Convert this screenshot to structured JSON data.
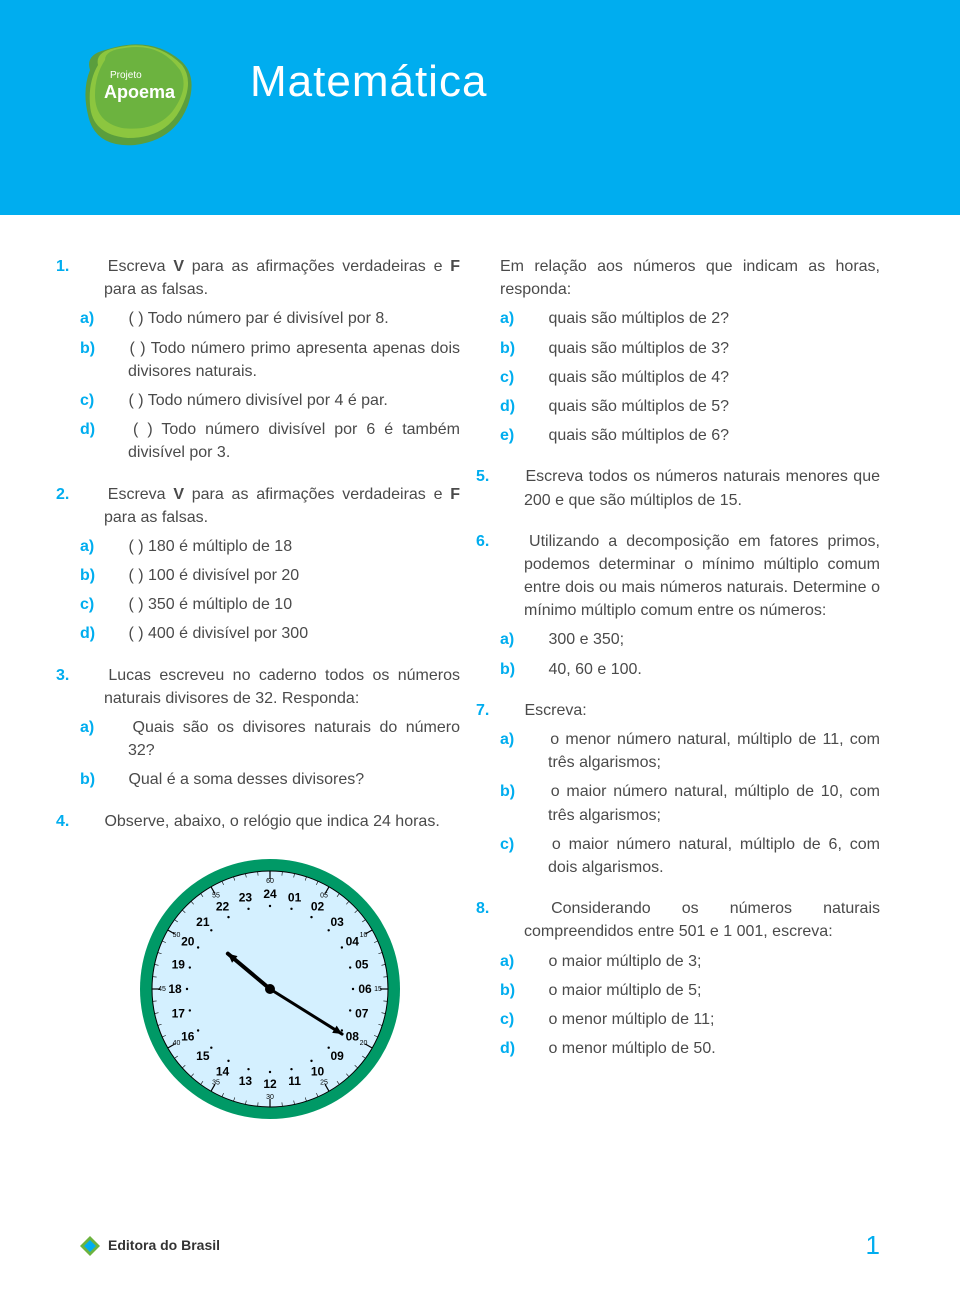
{
  "header": {
    "logo_line1": "Projeto",
    "logo_line2": "Apoema",
    "title": "Matemática",
    "bg_color": "#00adef",
    "logo_colors": [
      "#6cb33f",
      "#8cc63f",
      "#5a9e3d"
    ]
  },
  "accent_color": "#00adef",
  "text_color": "#4a4a4a",
  "left_col": {
    "q1": {
      "num": "1.",
      "text": "Escreva V para as afirmações verdadeiras e F para as falsas.",
      "items": [
        {
          "label": "a)",
          "text": "(   ) Todo número par é divisível por 8."
        },
        {
          "label": "b)",
          "text": "(   ) Todo número primo apresenta apenas dois divisores naturais."
        },
        {
          "label": "c)",
          "text": "(   ) Todo número divisível por 4 é par."
        },
        {
          "label": "d)",
          "text": "(   ) Todo número divisível por 6 é também divisível por 3."
        }
      ]
    },
    "q2": {
      "num": "2.",
      "text": "Escreva V para as afirmações verdadeiras e F para as falsas.",
      "items": [
        {
          "label": "a)",
          "text": "(   ) 180 é múltiplo de 18"
        },
        {
          "label": "b)",
          "text": "(   ) 100 é divisível por 20"
        },
        {
          "label": "c)",
          "text": "(   ) 350 é múltiplo de 10"
        },
        {
          "label": "d)",
          "text": "(   ) 400 é divisível por 300"
        }
      ]
    },
    "q3": {
      "num": "3.",
      "text": "Lucas escreveu no caderno todos os números naturais divisores de 32. Responda:",
      "items": [
        {
          "label": "a)",
          "text": "Quais são os divisores naturais do número 32?"
        },
        {
          "label": "b)",
          "text": "Qual é a soma desses divisores?"
        }
      ]
    },
    "q4": {
      "num": "4.",
      "text": "Observe, abaixo, o relógio que indica 24 horas."
    }
  },
  "right_col": {
    "q4_cont": {
      "text": "Em relação aos números que indicam as horas, responda:",
      "items": [
        {
          "label": "a)",
          "text": "quais são múltiplos de 2?"
        },
        {
          "label": "b)",
          "text": "quais são múltiplos de 3?"
        },
        {
          "label": "c)",
          "text": "quais são múltiplos de 4?"
        },
        {
          "label": "d)",
          "text": "quais são múltiplos de 5?"
        },
        {
          "label": "e)",
          "text": "quais são múltiplos de 6?"
        }
      ]
    },
    "q5": {
      "num": "5.",
      "text": "Escreva todos os números naturais menores que 200 e que são múltiplos de 15."
    },
    "q6": {
      "num": "6.",
      "text": "Utilizando a decomposição em fatores primos, podemos determinar o mínimo múltiplo comum entre dois ou mais números naturais. Determine o mínimo múltiplo comum entre os números:",
      "items": [
        {
          "label": "a)",
          "text": "300 e 350;"
        },
        {
          "label": "b)",
          "text": "40, 60 e 100."
        }
      ]
    },
    "q7": {
      "num": "7.",
      "text": "Escreva:",
      "items": [
        {
          "label": "a)",
          "text": "o menor número natural, múltiplo de 11, com três algarismos;"
        },
        {
          "label": "b)",
          "text": "o maior número natural, múltiplo de 10, com três algarismos;"
        },
        {
          "label": "c)",
          "text": "o maior número natural, múltiplo de 6, com dois algarismos."
        }
      ]
    },
    "q8": {
      "num": "8.",
      "text": "Considerando os números naturais compreendidos entre 501 e 1 001, escreva:",
      "items": [
        {
          "label": "a)",
          "text": "o maior múltiplo de 3;"
        },
        {
          "label": "b)",
          "text": "o maior múltiplo de 5;"
        },
        {
          "label": "c)",
          "text": "o menor múltiplo de 11;"
        },
        {
          "label": "d)",
          "text": "o menor múltiplo de 50."
        }
      ]
    }
  },
  "clock": {
    "rim_color": "#009966",
    "face_color": "#d4f0ff",
    "hours": [
      "01",
      "02",
      "03",
      "04",
      "05",
      "06",
      "07",
      "08",
      "09",
      "10",
      "11",
      "12",
      "13",
      "14",
      "15",
      "16",
      "17",
      "18",
      "19",
      "20",
      "21",
      "22",
      "23",
      "24"
    ],
    "minute_marks": [
      "05",
      "10",
      "15",
      "20",
      "25",
      "30",
      "35",
      "40",
      "45",
      "50",
      "55",
      "60"
    ],
    "hour_hand_angle": 310,
    "minute_hand_angle": 122,
    "radius": 130,
    "hour_ring_radius": 95,
    "minute_ring_radius": 118,
    "hour_fontsize": 12,
    "minute_fontsize": 7,
    "hand_color": "#000000"
  },
  "footer": {
    "publisher": "Editora do Brasil",
    "page_number": "1",
    "diamond_colors": [
      "#6cb33f",
      "#00adef"
    ]
  }
}
